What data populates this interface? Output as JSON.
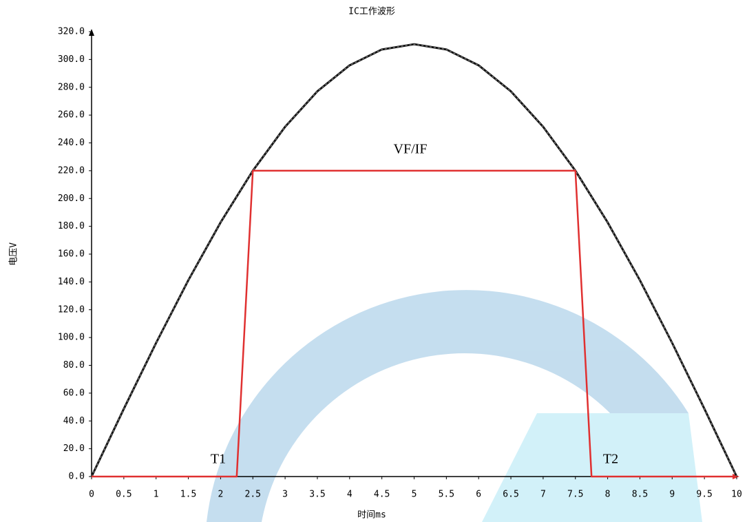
{
  "chart_data": {
    "type": "line",
    "title": "IC工作波形",
    "x_label": "时间ms",
    "y_label": "电压V",
    "xlim": [
      0,
      10
    ],
    "ylim": [
      0,
      320
    ],
    "xticks": [
      0,
      0.5,
      1,
      1.5,
      2,
      2.5,
      3,
      3.5,
      4,
      4.5,
      5,
      5.5,
      6,
      6.5,
      7,
      7.5,
      8,
      8.5,
      9,
      9.5,
      10
    ],
    "yticks": [
      {
        "value": 0,
        "label": "0.0"
      },
      {
        "value": 20,
        "label": "20.0"
      },
      {
        "value": 40,
        "label": "40.0"
      },
      {
        "value": 60,
        "label": "60.0"
      },
      {
        "value": 80,
        "label": "80.0"
      },
      {
        "value": 100,
        "label": "100.0"
      },
      {
        "value": 120,
        "label": "120.0"
      },
      {
        "value": 140,
        "label": "140.0"
      },
      {
        "value": 160,
        "label": "160.0"
      },
      {
        "value": 180,
        "label": "180.0"
      },
      {
        "value": 200,
        "label": "200.0"
      },
      {
        "value": 220,
        "label": "220.0"
      },
      {
        "value": 240,
        "label": "240.0"
      },
      {
        "value": 260,
        "label": "260.0"
      },
      {
        "value": 280,
        "label": "280.0"
      },
      {
        "value": 300,
        "label": "300.0"
      },
      {
        "value": 320,
        "label": "320.0"
      }
    ],
    "series": [
      {
        "color": "#111111",
        "x": [
          0,
          0.5,
          1,
          1.5,
          2,
          2.5,
          3,
          3.5,
          4,
          4.5,
          5,
          5.5,
          6,
          6.5,
          7,
          7.5,
          8,
          8.5,
          9,
          9.5,
          10
        ],
        "values": [
          0,
          48.7,
          96.1,
          141.2,
          182.8,
          220,
          251.6,
          277.1,
          295.8,
          307.2,
          311,
          307.2,
          295.8,
          277.1,
          251.6,
          220,
          182.8,
          141.2,
          96.1,
          48.7,
          0
        ]
      },
      {
        "color": "#e03030",
        "x": [
          0,
          2.25,
          2.5,
          7.5,
          7.75,
          10
        ],
        "values": [
          0,
          0,
          220,
          220,
          0,
          0
        ]
      }
    ],
    "annotations": [
      "VF/IF",
      "T1",
      "T2"
    ]
  }
}
